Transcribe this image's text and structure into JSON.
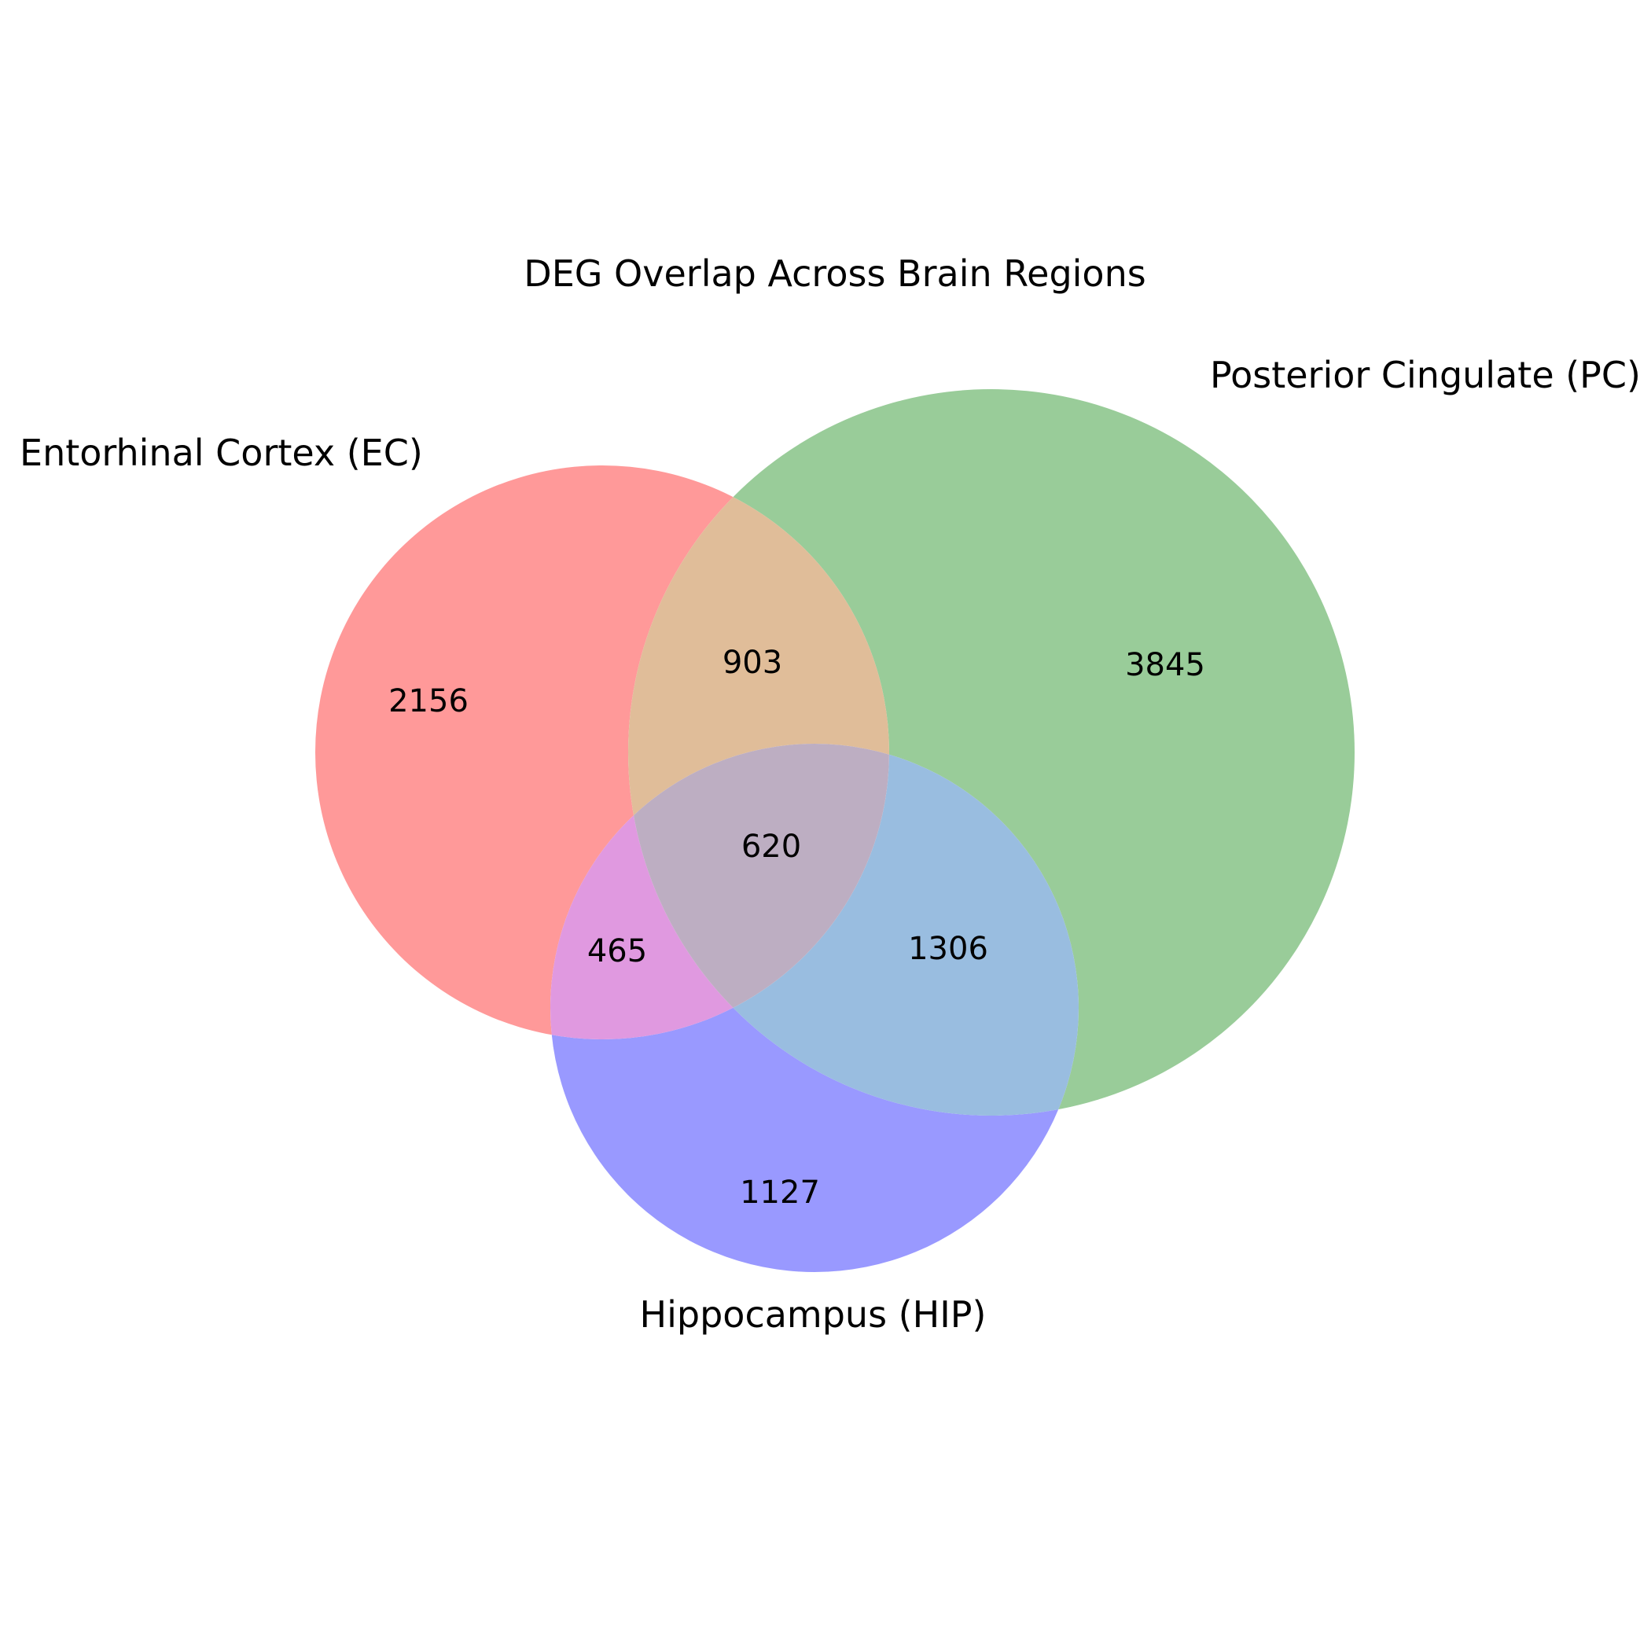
{
  "chart_data": {
    "type": "venn",
    "title": "DEG Overlap Across Brain Regions",
    "sets": [
      {
        "key": "EC",
        "name": "Entorhinal Cortex (EC)",
        "color": "#ff9999"
      },
      {
        "key": "PC",
        "name": "Posterior Cingulate (PC)",
        "color": "#99cc99"
      },
      {
        "key": "HIP",
        "name": "Hippocampus (HIP)",
        "color": "#9999ff"
      }
    ],
    "regions": [
      {
        "sets": [
          "EC"
        ],
        "label": "2156",
        "value": 2156
      },
      {
        "sets": [
          "PC"
        ],
        "label": "3845",
        "value": 3845
      },
      {
        "sets": [
          "HIP"
        ],
        "label": "1127",
        "value": 1127
      },
      {
        "sets": [
          "EC",
          "PC"
        ],
        "label": "903",
        "value": 903
      },
      {
        "sets": [
          "EC",
          "HIP"
        ],
        "label": "465",
        "value": 465
      },
      {
        "sets": [
          "PC",
          "HIP"
        ],
        "label": "1306",
        "value": 1306
      },
      {
        "sets": [
          "EC",
          "PC",
          "HIP"
        ],
        "label": "620",
        "value": 620
      }
    ],
    "region_colors": {
      "EC": "#ff9999",
      "PC": "#99cc99",
      "HIP": "#9999ff",
      "EC&PC": "#e0bd99",
      "EC&HIP": "#e099e0",
      "PC&HIP": "#99bde0",
      "EC&PC&HIP": "#bdaec2"
    }
  }
}
